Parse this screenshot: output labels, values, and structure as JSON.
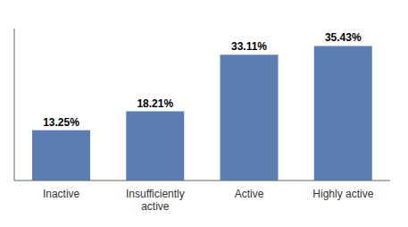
{
  "chart_data": {
    "type": "bar",
    "categories": [
      "Inactive",
      "Insufficiently\nactive",
      "Active",
      "Highly active"
    ],
    "values": [
      13.25,
      18.21,
      33.11,
      35.43
    ],
    "value_labels": [
      "13.25%",
      "18.21%",
      "33.11%",
      "35.43%"
    ],
    "data_labels": true,
    "color": "#5b7db1",
    "ylim": [
      0,
      40
    ],
    "tick_labels": "x",
    "grid": false
  }
}
